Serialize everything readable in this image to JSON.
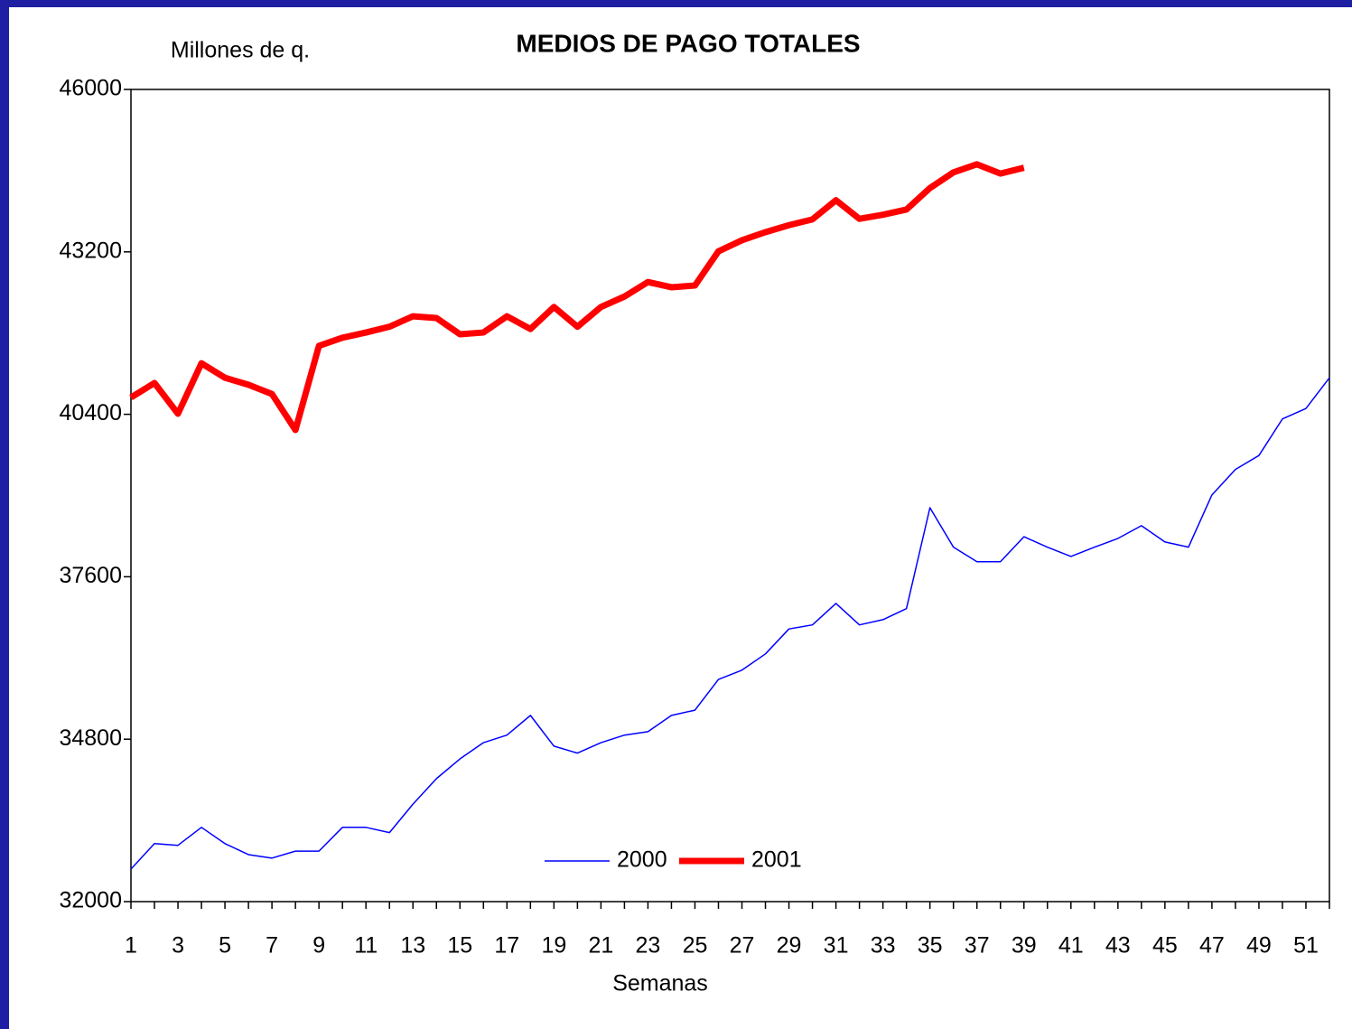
{
  "chart_data": {
    "type": "line",
    "title": "MEDIOS DE PAGO TOTALES",
    "y_label": "Millones de q.",
    "x_label": "Semanas",
    "x": [
      1,
      2,
      3,
      4,
      5,
      6,
      7,
      8,
      9,
      10,
      11,
      12,
      13,
      14,
      15,
      16,
      17,
      18,
      19,
      20,
      21,
      22,
      23,
      24,
      25,
      26,
      27,
      28,
      29,
      30,
      31,
      32,
      33,
      34,
      35,
      36,
      37,
      38,
      39,
      40,
      41,
      42,
      43,
      44,
      45,
      46,
      47,
      48,
      49,
      50,
      51,
      52
    ],
    "xlim": [
      1,
      52
    ],
    "xticks": [
      1,
      3,
      5,
      7,
      9,
      11,
      13,
      15,
      17,
      19,
      21,
      23,
      25,
      27,
      29,
      31,
      33,
      35,
      37,
      39,
      41,
      43,
      45,
      47,
      49,
      51
    ],
    "ylim": [
      32000,
      46000
    ],
    "yticks": [
      32000,
      34800,
      37600,
      40400,
      43200,
      46000
    ],
    "grid": false,
    "legend": "bottom",
    "series": [
      {
        "name": "2000",
        "color": "#0000ff",
        "width": 1.5,
        "values": [
          32560,
          33000,
          32970,
          33280,
          33000,
          32810,
          32750,
          32870,
          32870,
          33280,
          33280,
          33190,
          33680,
          34120,
          34460,
          34740,
          34870,
          35210,
          34680,
          34560,
          34740,
          34870,
          34930,
          35210,
          35300,
          35830,
          35990,
          36270,
          36700,
          36770,
          37140,
          36770,
          36860,
          37050,
          38790,
          38110,
          37860,
          37860,
          38290,
          38110,
          37950,
          38110,
          38260,
          38480,
          38200,
          38110,
          39010,
          39450,
          39690,
          40320,
          40500,
          41030
        ]
      },
      {
        "name": "2001",
        "color": "#ff0000",
        "width": 7,
        "values": [
          40690,
          40940,
          40410,
          41280,
          41030,
          40910,
          40750,
          40130,
          41580,
          41720,
          41810,
          41910,
          42090,
          42060,
          41780,
          41810,
          42090,
          41870,
          42250,
          41910,
          42250,
          42430,
          42680,
          42590,
          42620,
          43210,
          43400,
          43540,
          43660,
          43760,
          44090,
          43770,
          43840,
          43930,
          44300,
          44570,
          44710,
          44550,
          44650,
          null,
          null,
          null,
          null,
          null,
          null,
          null,
          null,
          null,
          null,
          null,
          null,
          null
        ]
      }
    ]
  }
}
